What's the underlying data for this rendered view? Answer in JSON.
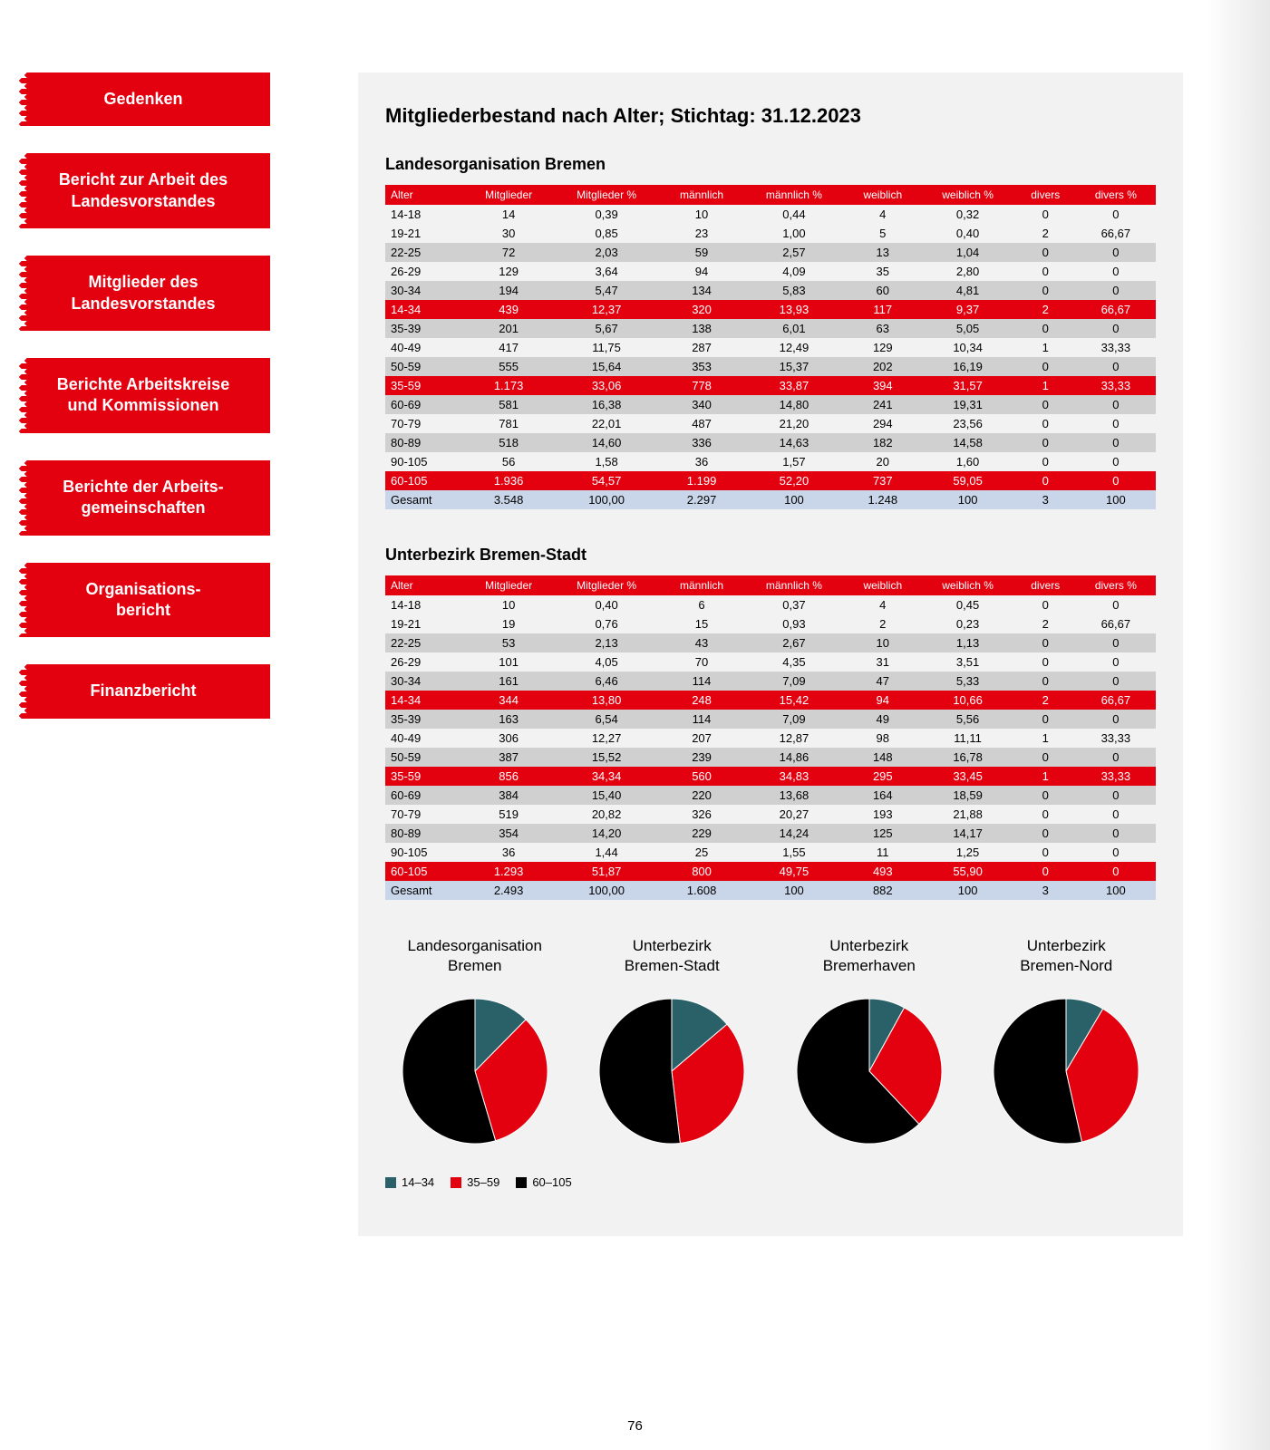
{
  "sidebar": {
    "items": [
      {
        "label": "Gedenken"
      },
      {
        "label": "Bericht zur Arbeit des\nLandesvorstandes"
      },
      {
        "label": "Mitglieder des\nLandesvorstandes"
      },
      {
        "label": "Berichte Arbeitskreise\nund Kommissionen"
      },
      {
        "label": "Berichte der Arbeits-\ngemeinschaften"
      },
      {
        "label": "Organisations-\nbericht"
      },
      {
        "label": "Finanzbericht"
      }
    ]
  },
  "main": {
    "title": "Mitgliederbestand nach Alter; Stichtag: 31.12.2023",
    "page_number": "76",
    "columns": [
      "Alter",
      "Mitglieder",
      "Mitglieder %",
      "männlich",
      "männlich %",
      "weiblich",
      "weiblich %",
      "divers",
      "divers %"
    ],
    "table1": {
      "title": "Landesorganisation Bremen",
      "rows": [
        {
          "c": [
            "14-18",
            "14",
            "0,39",
            "10",
            "0,44",
            "4",
            "0,32",
            "0",
            "0"
          ],
          "t": "e"
        },
        {
          "c": [
            "19-21",
            "30",
            "0,85",
            "23",
            "1,00",
            "5",
            "0,40",
            "2",
            "66,67"
          ],
          "t": "e"
        },
        {
          "c": [
            "22-25",
            "72",
            "2,03",
            "59",
            "2,57",
            "13",
            "1,04",
            "0",
            "0"
          ],
          "t": "o"
        },
        {
          "c": [
            "26-29",
            "129",
            "3,64",
            "94",
            "4,09",
            "35",
            "2,80",
            "0",
            "0"
          ],
          "t": "e"
        },
        {
          "c": [
            "30-34",
            "194",
            "5,47",
            "134",
            "5,83",
            "60",
            "4,81",
            "0",
            "0"
          ],
          "t": "o"
        },
        {
          "c": [
            "14-34",
            "439",
            "12,37",
            "320",
            "13,93",
            "117",
            "9,37",
            "2",
            "66,67"
          ],
          "t": "h"
        },
        {
          "c": [
            "35-39",
            "201",
            "5,67",
            "138",
            "6,01",
            "63",
            "5,05",
            "0",
            "0"
          ],
          "t": "o"
        },
        {
          "c": [
            "40-49",
            "417",
            "11,75",
            "287",
            "12,49",
            "129",
            "10,34",
            "1",
            "33,33"
          ],
          "t": "e"
        },
        {
          "c": [
            "50-59",
            "555",
            "15,64",
            "353",
            "15,37",
            "202",
            "16,19",
            "0",
            "0"
          ],
          "t": "o"
        },
        {
          "c": [
            "35-59",
            "1.173",
            "33,06",
            "778",
            "33,87",
            "394",
            "31,57",
            "1",
            "33,33"
          ],
          "t": "h"
        },
        {
          "c": [
            "60-69",
            "581",
            "16,38",
            "340",
            "14,80",
            "241",
            "19,31",
            "0",
            "0"
          ],
          "t": "o"
        },
        {
          "c": [
            "70-79",
            "781",
            "22,01",
            "487",
            "21,20",
            "294",
            "23,56",
            "0",
            "0"
          ],
          "t": "e"
        },
        {
          "c": [
            "80-89",
            "518",
            "14,60",
            "336",
            "14,63",
            "182",
            "14,58",
            "0",
            "0"
          ],
          "t": "o"
        },
        {
          "c": [
            "90-105",
            "56",
            "1,58",
            "36",
            "1,57",
            "20",
            "1,60",
            "0",
            "0"
          ],
          "t": "e"
        },
        {
          "c": [
            "60-105",
            "1.936",
            "54,57",
            "1.199",
            "52,20",
            "737",
            "59,05",
            "0",
            "0"
          ],
          "t": "h"
        },
        {
          "c": [
            "Gesamt",
            "3.548",
            "100,00",
            "2.297",
            "100",
            "1.248",
            "100",
            "3",
            "100"
          ],
          "t": "t"
        }
      ]
    },
    "table2": {
      "title": "Unterbezirk Bremen-Stadt",
      "rows": [
        {
          "c": [
            "14-18",
            "10",
            "0,40",
            "6",
            "0,37",
            "4",
            "0,45",
            "0",
            "0"
          ],
          "t": "e"
        },
        {
          "c": [
            "19-21",
            "19",
            "0,76",
            "15",
            "0,93",
            "2",
            "0,23",
            "2",
            "66,67"
          ],
          "t": "e"
        },
        {
          "c": [
            "22-25",
            "53",
            "2,13",
            "43",
            "2,67",
            "10",
            "1,13",
            "0",
            "0"
          ],
          "t": "o"
        },
        {
          "c": [
            "26-29",
            "101",
            "4,05",
            "70",
            "4,35",
            "31",
            "3,51",
            "0",
            "0"
          ],
          "t": "e"
        },
        {
          "c": [
            "30-34",
            "161",
            "6,46",
            "114",
            "7,09",
            "47",
            "5,33",
            "0",
            "0"
          ],
          "t": "o"
        },
        {
          "c": [
            "14-34",
            "344",
            "13,80",
            "248",
            "15,42",
            "94",
            "10,66",
            "2",
            "66,67"
          ],
          "t": "h"
        },
        {
          "c": [
            "35-39",
            "163",
            "6,54",
            "114",
            "7,09",
            "49",
            "5,56",
            "0",
            "0"
          ],
          "t": "o"
        },
        {
          "c": [
            "40-49",
            "306",
            "12,27",
            "207",
            "12,87",
            "98",
            "11,11",
            "1",
            "33,33"
          ],
          "t": "e"
        },
        {
          "c": [
            "50-59",
            "387",
            "15,52",
            "239",
            "14,86",
            "148",
            "16,78",
            "0",
            "0"
          ],
          "t": "o"
        },
        {
          "c": [
            "35-59",
            "856",
            "34,34",
            "560",
            "34,83",
            "295",
            "33,45",
            "1",
            "33,33"
          ],
          "t": "h"
        },
        {
          "c": [
            "60-69",
            "384",
            "15,40",
            "220",
            "13,68",
            "164",
            "18,59",
            "0",
            "0"
          ],
          "t": "o"
        },
        {
          "c": [
            "70-79",
            "519",
            "20,82",
            "326",
            "20,27",
            "193",
            "21,88",
            "0",
            "0"
          ],
          "t": "e"
        },
        {
          "c": [
            "80-89",
            "354",
            "14,20",
            "229",
            "14,24",
            "125",
            "14,17",
            "0",
            "0"
          ],
          "t": "o"
        },
        {
          "c": [
            "90-105",
            "36",
            "1,44",
            "25",
            "1,55",
            "11",
            "1,25",
            "0",
            "0"
          ],
          "t": "e"
        },
        {
          "c": [
            "60-105",
            "1.293",
            "51,87",
            "800",
            "49,75",
            "493",
            "55,90",
            "0",
            "0"
          ],
          "t": "h"
        },
        {
          "c": [
            "Gesamt",
            "2.493",
            "100,00",
            "1.608",
            "100",
            "882",
            "100",
            "3",
            "100"
          ],
          "t": "t"
        }
      ]
    },
    "charts": {
      "colors": {
        "14-34": "#2a6168",
        "35-59": "#e3000f",
        "60-105": "#000000"
      },
      "legend": [
        {
          "label": "14–34",
          "color": "#2a6168"
        },
        {
          "label": "35–59",
          "color": "#e3000f"
        },
        {
          "label": "60–105",
          "color": "#000000"
        }
      ],
      "items": [
        {
          "title": "Landesorganisation\nBremen",
          "slices": [
            12.37,
            33.06,
            54.57
          ]
        },
        {
          "title": "Unterbezirk\nBremen-Stadt",
          "slices": [
            13.8,
            34.34,
            51.87
          ]
        },
        {
          "title": "Unterbezirk\nBremerhaven",
          "slices": [
            8.0,
            30.0,
            62.0
          ]
        },
        {
          "title": "Unterbezirk\nBremen-Nord",
          "slices": [
            8.5,
            38.0,
            53.5
          ]
        }
      ]
    }
  }
}
